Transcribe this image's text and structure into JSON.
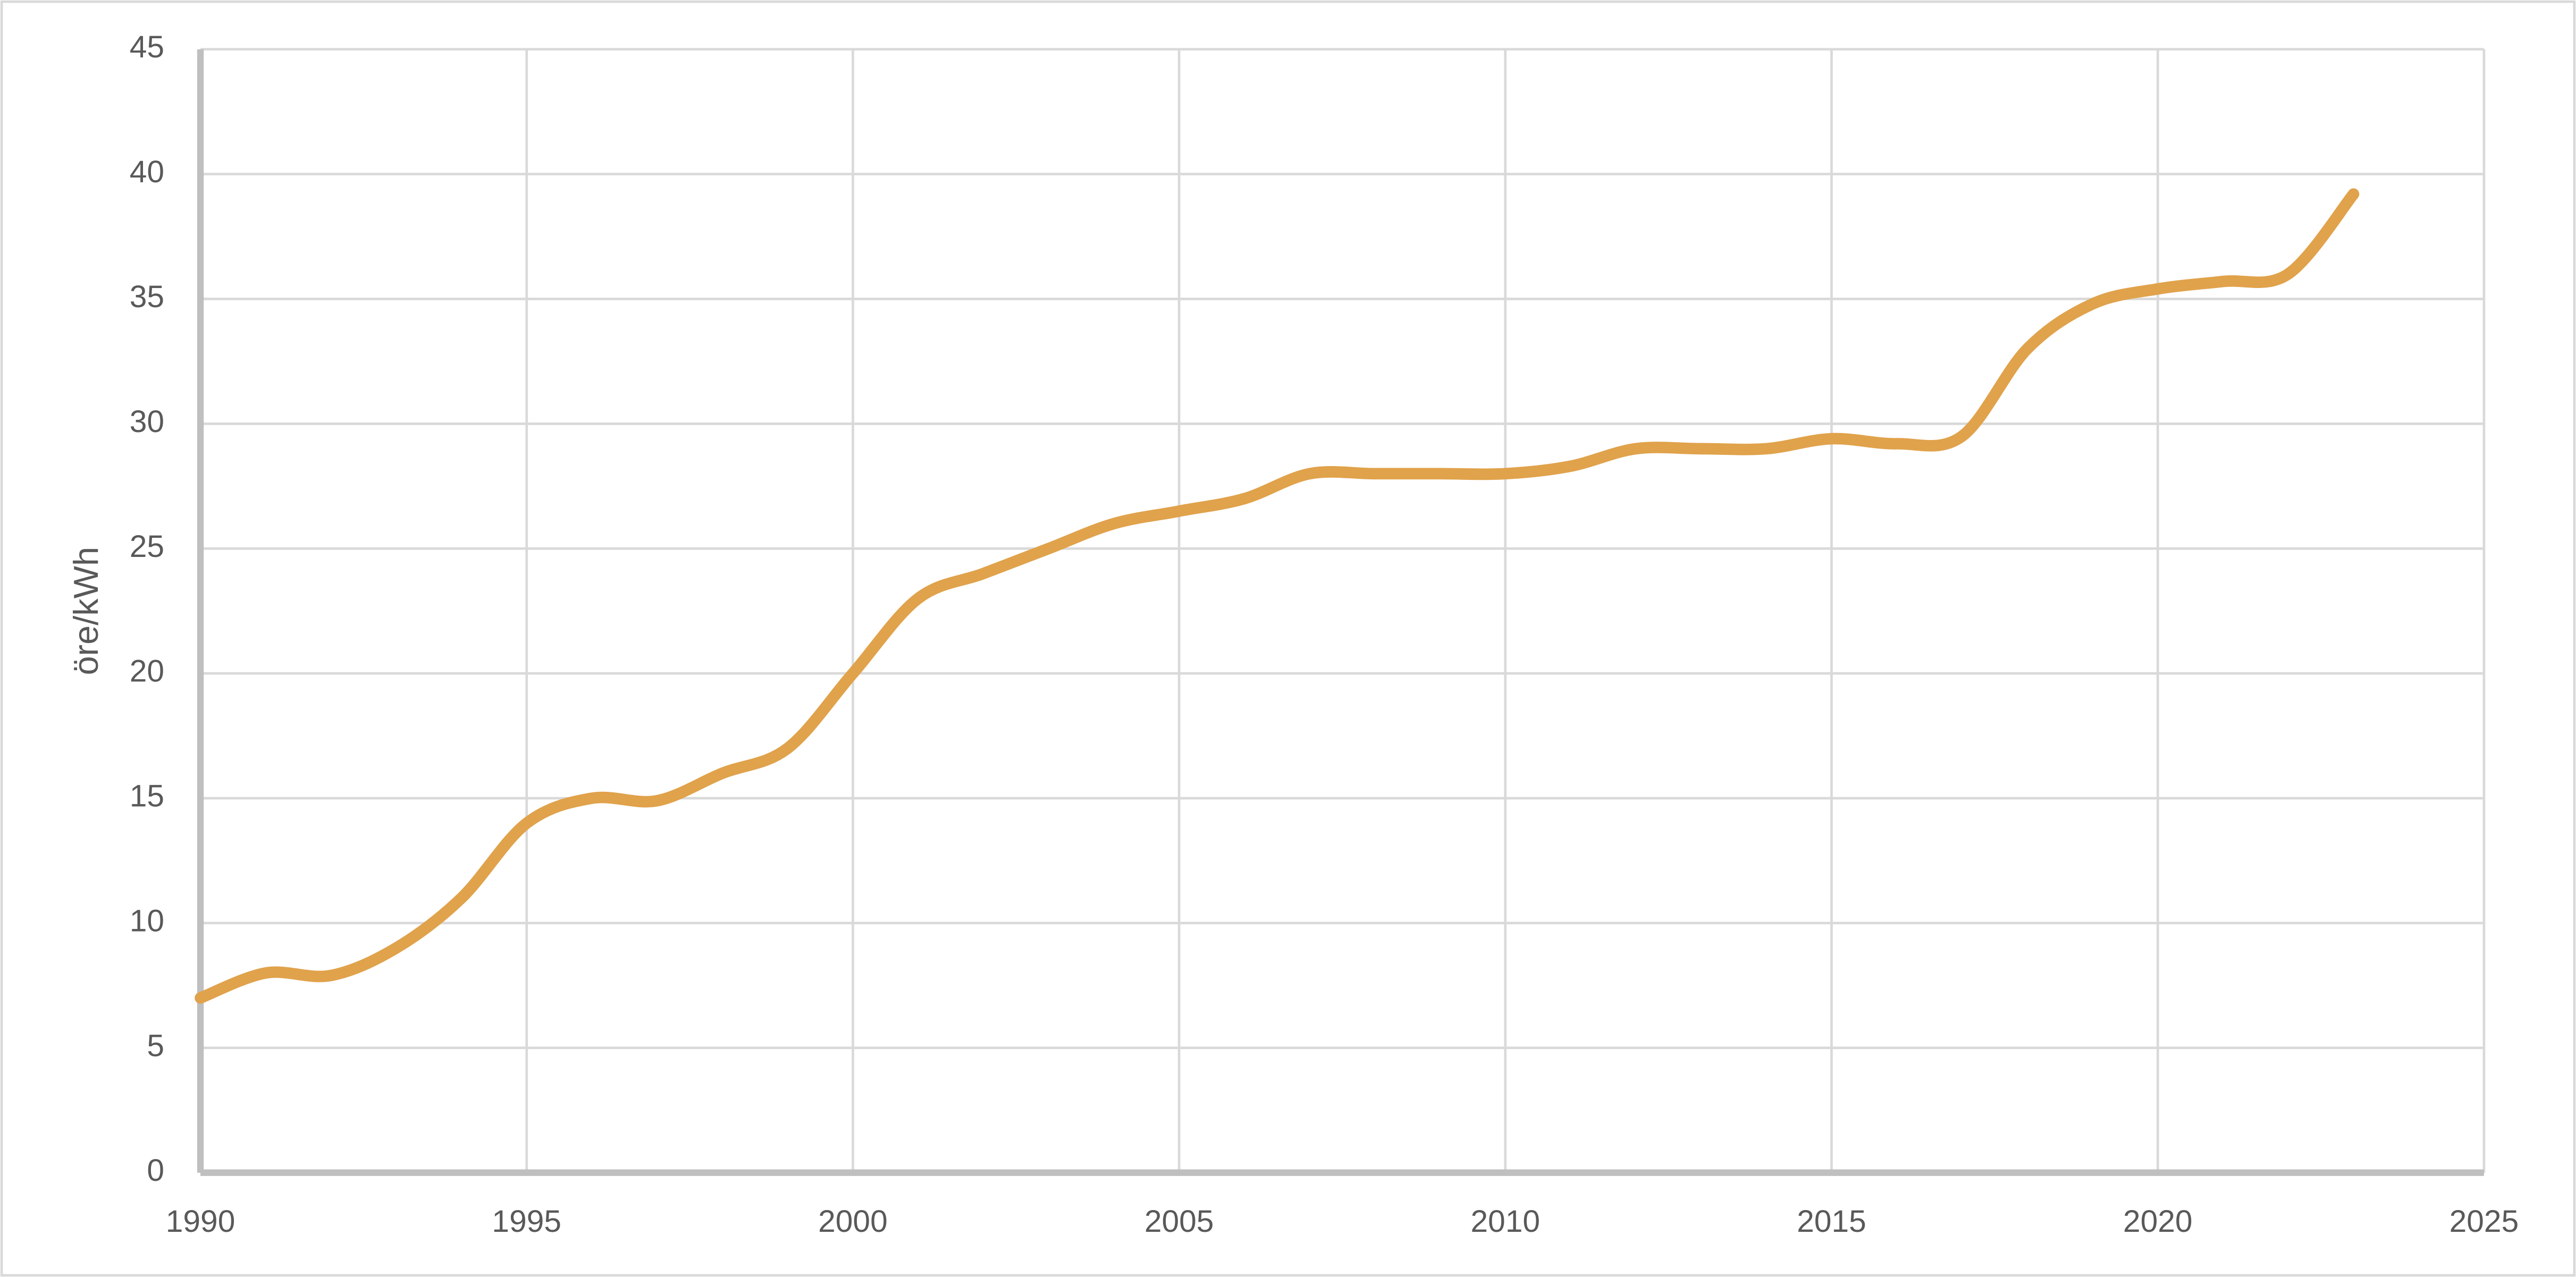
{
  "chart_data": {
    "type": "line",
    "y_label": "öre/kWh",
    "x": [
      1990,
      1991,
      1992,
      1993,
      1994,
      1995,
      1996,
      1997,
      1998,
      1999,
      2000,
      2001,
      2002,
      2003,
      2004,
      2005,
      2006,
      2007,
      2008,
      2009,
      2010,
      2011,
      2012,
      2013,
      2014,
      2015,
      2016,
      2017,
      2018,
      2019,
      2020,
      2021,
      2022,
      2023
    ],
    "series": [
      {
        "name": "öre/kWh",
        "color": "#e0a24b",
        "values": [
          7,
          8,
          7.9,
          9,
          11,
          14,
          15,
          14.9,
          16,
          17,
          20,
          23,
          24,
          25,
          26,
          26.5,
          27,
          28,
          28,
          28,
          28,
          28.3,
          29,
          29,
          29,
          29.4,
          29.2,
          29.5,
          33,
          34.8,
          35.4,
          35.7,
          36,
          39.2
        ]
      }
    ],
    "xlim": [
      1990,
      2025
    ],
    "xticks": [
      1990,
      1995,
      2000,
      2005,
      2010,
      2015,
      2020,
      2025
    ],
    "ylim": [
      0,
      45
    ],
    "yticks": [
      0,
      5,
      10,
      15,
      20,
      25,
      30,
      35,
      40,
      45
    ],
    "grid": true
  }
}
